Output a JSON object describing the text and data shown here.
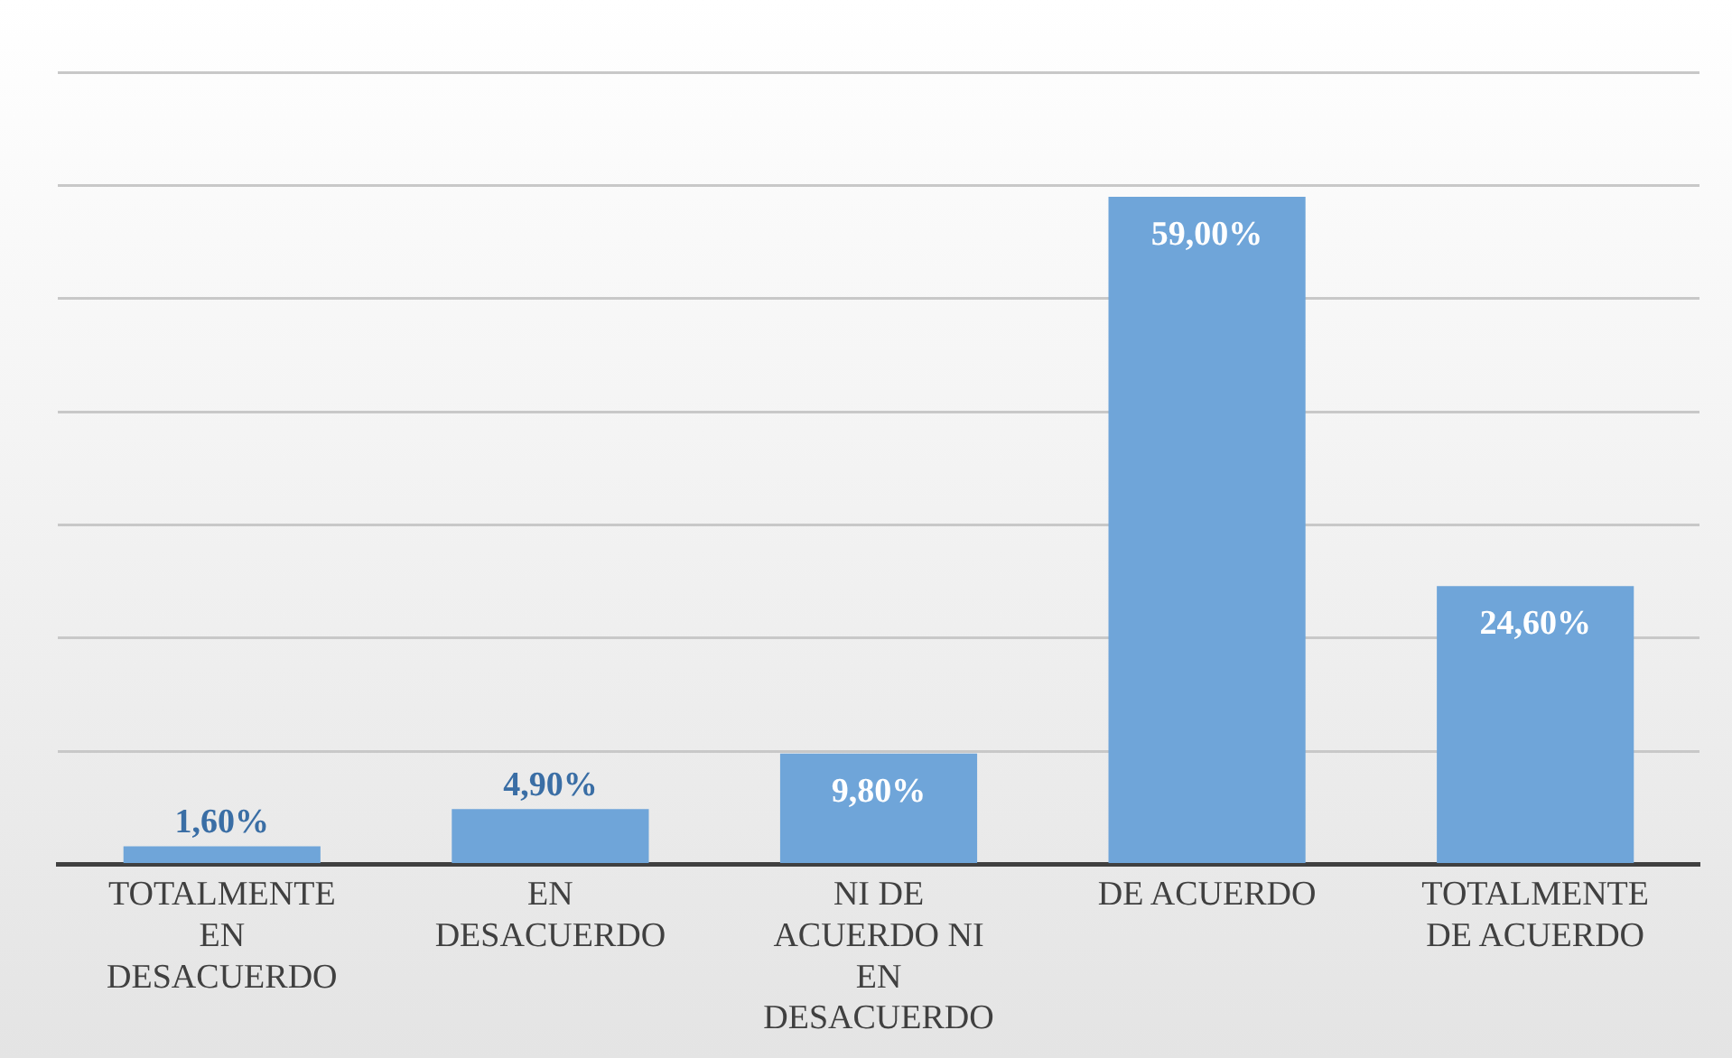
{
  "chart_data": {
    "type": "bar",
    "categories": [
      "TOTALMENTE EN DESACUERDO",
      "EN DESACUERDO",
      "NI DE ACUERDO NI EN DESACUERDO",
      "DE ACUERDO",
      "TOTALMENTE DE ACUERDO"
    ],
    "values": [
      1.6,
      4.9,
      9.8,
      59,
      24.6
    ],
    "value_labels": [
      "1,60%",
      "4,90%",
      "9,80%",
      "59,00%",
      "24,60%"
    ],
    "color": "#6fa5d9",
    "ylim": [
      0,
      70
    ],
    "yticks": [
      {
        "value": 0,
        "label": null
      },
      {
        "value": 10,
        "label": null
      },
      {
        "value": 20,
        "label": null
      },
      {
        "value": 30,
        "label": null
      },
      {
        "value": 40,
        "label": null
      },
      {
        "value": 50,
        "label": null
      },
      {
        "value": 60,
        "label": null
      },
      {
        "value": 70,
        "label": null
      }
    ],
    "grid": "y",
    "tick_labels": "x",
    "legend": false
  }
}
